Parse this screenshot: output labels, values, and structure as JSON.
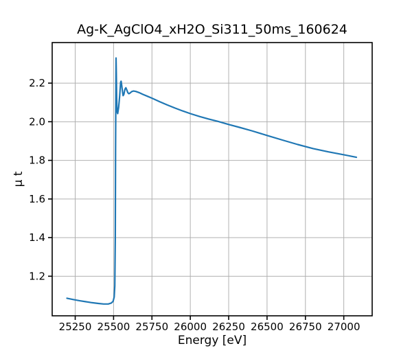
{
  "chart_data": {
    "type": "line",
    "title": "Ag-K_AgClO4_xH2O_Si311_50ms_160624",
    "xlabel": "Energy [eV]",
    "ylabel": "μ t",
    "xlim": [
      25100,
      27185
    ],
    "ylim": [
      0.995,
      2.41
    ],
    "xticks": [
      25250,
      25500,
      25750,
      26000,
      26250,
      26500,
      26750,
      27000
    ],
    "xtick_labels": [
      "25250",
      "25500",
      "25750",
      "26000",
      "26250",
      "26500",
      "26750",
      "27000"
    ],
    "yticks": [
      1.2,
      1.4,
      1.6,
      1.8,
      2.0,
      2.2
    ],
    "ytick_labels": [
      "1.2",
      "1.4",
      "1.6",
      "1.8",
      "2.0",
      "2.2"
    ],
    "grid": true,
    "legend": null,
    "line_color": "#1f77b4",
    "grid_color": "#b0b0b0",
    "spine_color": "#000000",
    "series": [
      {
        "name": "mu_t",
        "points": [
          [
            25196,
            1.086
          ],
          [
            25240,
            1.079
          ],
          [
            25280,
            1.073
          ],
          [
            25320,
            1.068
          ],
          [
            25360,
            1.063
          ],
          [
            25400,
            1.059
          ],
          [
            25435,
            1.056
          ],
          [
            25465,
            1.056
          ],
          [
            25485,
            1.061
          ],
          [
            25497,
            1.07
          ],
          [
            25504,
            1.092
          ],
          [
            25508,
            1.15
          ],
          [
            25511,
            1.4
          ],
          [
            25513,
            1.85
          ],
          [
            25515,
            2.2
          ],
          [
            25516,
            2.33
          ],
          [
            25518,
            2.25
          ],
          [
            25520,
            2.12
          ],
          [
            25523,
            2.052
          ],
          [
            25527,
            2.042
          ],
          [
            25533,
            2.075
          ],
          [
            25540,
            2.135
          ],
          [
            25546,
            2.205
          ],
          [
            25549,
            2.21
          ],
          [
            25553,
            2.19
          ],
          [
            25558,
            2.155
          ],
          [
            25562,
            2.135
          ],
          [
            25567,
            2.142
          ],
          [
            25574,
            2.168
          ],
          [
            25580,
            2.176
          ],
          [
            25586,
            2.165
          ],
          [
            25593,
            2.15
          ],
          [
            25600,
            2.145
          ],
          [
            25608,
            2.149
          ],
          [
            25618,
            2.156
          ],
          [
            25630,
            2.159
          ],
          [
            25645,
            2.157
          ],
          [
            25665,
            2.151
          ],
          [
            25690,
            2.142
          ],
          [
            25720,
            2.132
          ],
          [
            25750,
            2.122
          ],
          [
            25800,
            2.104
          ],
          [
            25850,
            2.087
          ],
          [
            25900,
            2.071
          ],
          [
            25950,
            2.056
          ],
          [
            26000,
            2.042
          ],
          [
            26060,
            2.027
          ],
          [
            26120,
            2.014
          ],
          [
            26180,
            2.002
          ],
          [
            26250,
            1.986
          ],
          [
            26320,
            1.971
          ],
          [
            26400,
            1.953
          ],
          [
            26500,
            1.929
          ],
          [
            26600,
            1.905
          ],
          [
            26700,
            1.882
          ],
          [
            26800,
            1.861
          ],
          [
            26900,
            1.844
          ],
          [
            27000,
            1.829
          ],
          [
            27045,
            1.822
          ],
          [
            27082,
            1.816
          ]
        ]
      }
    ]
  }
}
